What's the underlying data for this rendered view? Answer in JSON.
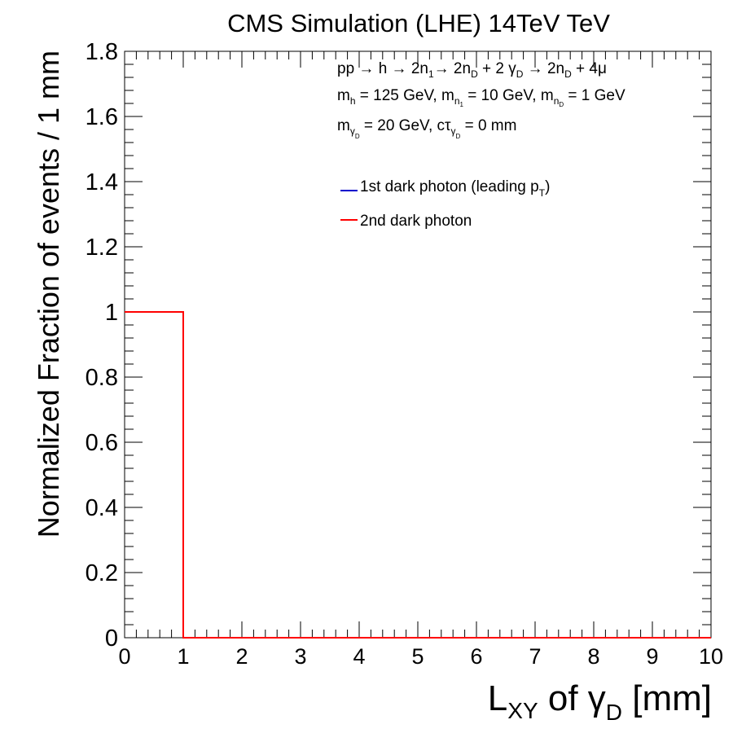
{
  "chart_data": {
    "type": "line",
    "title": "CMS Simulation (LHE) 14TeV TeV",
    "xlabel": {
      "main": "L",
      "sub": "XY",
      "mid": " of γ",
      "sub2": "D",
      "tail": " [mm]"
    },
    "ylabel": "Normalized Fraction of events / 1 mm",
    "xlim": [
      0,
      10
    ],
    "ylim": [
      0,
      1.8
    ],
    "x_ticks": [
      0,
      1,
      2,
      3,
      4,
      5,
      6,
      7,
      8,
      9,
      10
    ],
    "x_tick_labels": [
      "0",
      "1",
      "2",
      "3",
      "4",
      "5",
      "6",
      "7",
      "8",
      "9",
      "10"
    ],
    "y_ticks": [
      0,
      0.2,
      0.4,
      0.6,
      0.8,
      1.0,
      1.2,
      1.4,
      1.6,
      1.8
    ],
    "y_tick_labels": [
      "0",
      "0.2",
      "0.4",
      "0.6",
      "0.8",
      "1",
      "1.2",
      "1.4",
      "1.6",
      "1.8"
    ],
    "bin_edges": [
      0,
      1,
      2,
      3,
      4,
      5,
      6,
      7,
      8,
      9,
      10
    ],
    "series": [
      {
        "name": "1st dark photon (leading p_T)",
        "color": "#0000cc",
        "values": [
          1,
          0,
          0,
          0,
          0,
          0,
          0,
          0,
          0,
          0
        ]
      },
      {
        "name": "2nd dark photon",
        "color": "#ff0000",
        "values": [
          1,
          0,
          0,
          0,
          0,
          0,
          0,
          0,
          0,
          0
        ]
      }
    ],
    "annotations": {
      "process": {
        "a": "pp → h → 2n",
        "a1": "1",
        "b": "→ 2n",
        "b1": "D",
        "c": " + 2 γ",
        "c1": "D",
        "d": " → 2n",
        "d1": "D",
        "e": " + 4μ"
      },
      "masses": {
        "a": "m",
        "a1": "h",
        "b": " = 125 GeV, m",
        "b1": "n",
        "b2": "1",
        "c": " = 10 GeV, m",
        "c1": "n",
        "c2": "D",
        "d": " = 1 GeV"
      },
      "dark": {
        "a": "m",
        "a1": "γ",
        "a2": "D",
        "b": " = 20 GeV, cτ",
        "b1": "γ",
        "b2": "D",
        "c": " = 0 mm"
      }
    },
    "legend": {
      "placement": "top-right",
      "entries": [
        {
          "a": "1st dark photon (leading p",
          "sub": "T",
          "b": ")"
        },
        {
          "a": "2nd dark photon"
        }
      ]
    }
  }
}
